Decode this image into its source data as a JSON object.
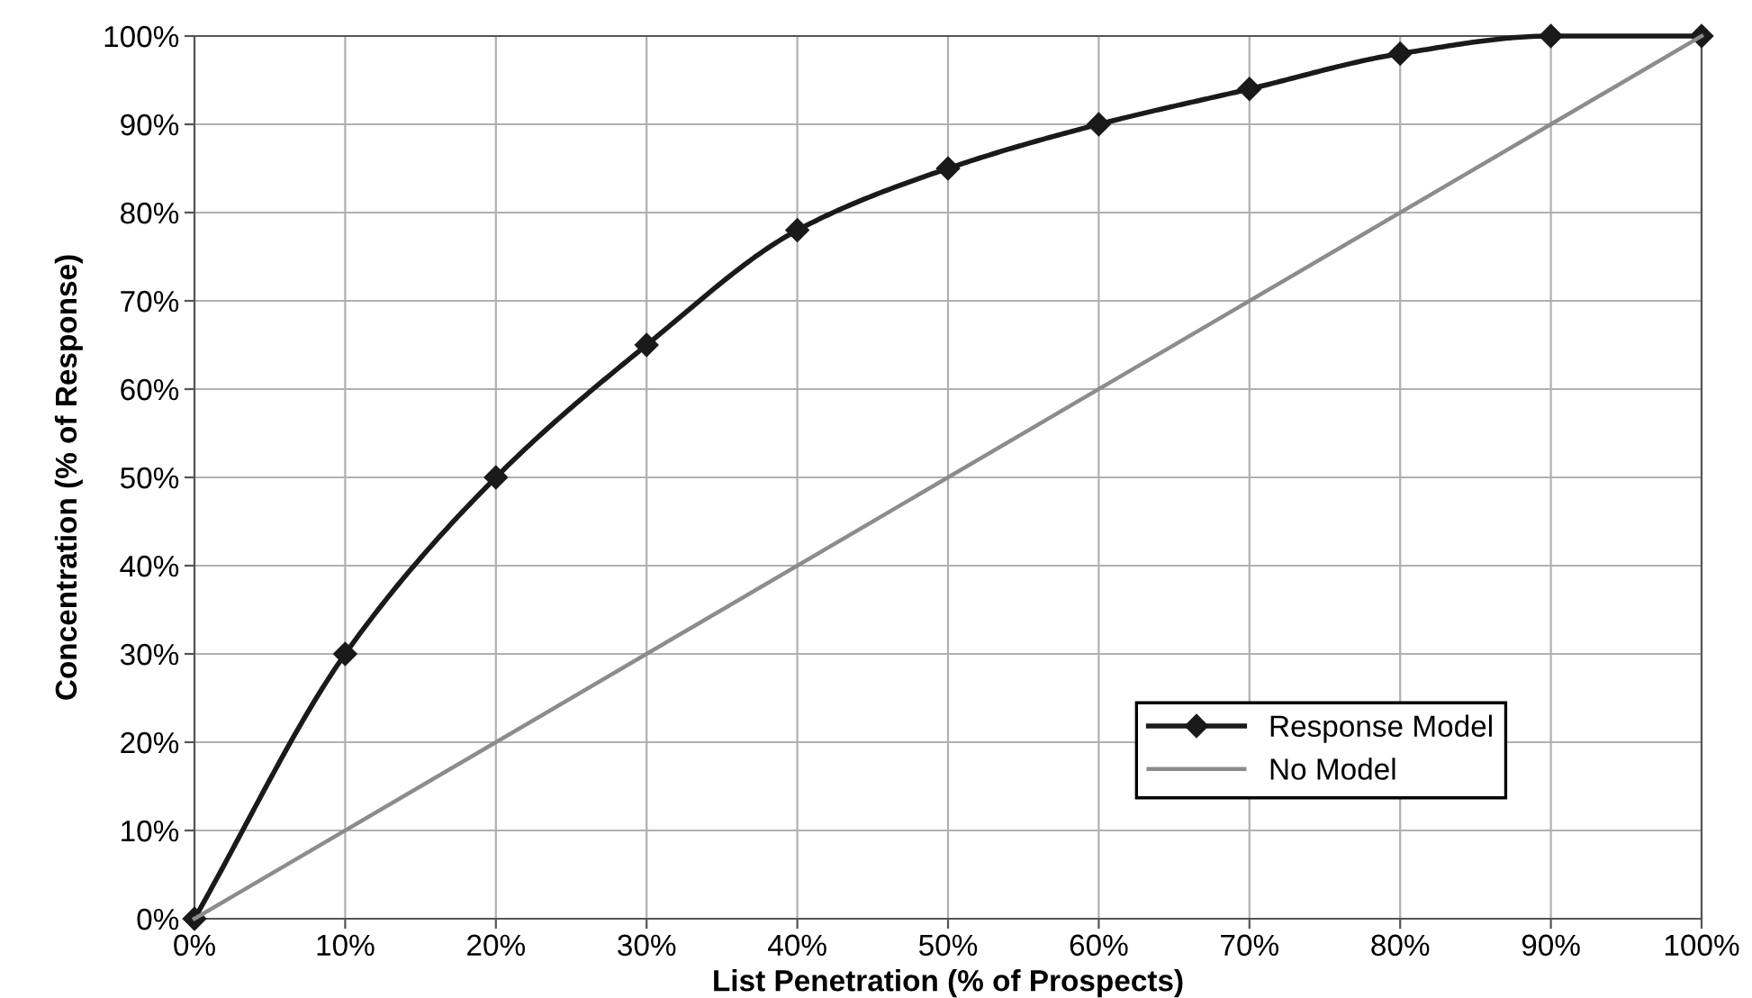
{
  "chart_data": {
    "type": "line",
    "xlabel": "List Penetration (% of Prospects)",
    "ylabel": "Concentration (% of Response)",
    "x": [
      0,
      10,
      20,
      30,
      40,
      50,
      60,
      70,
      80,
      90,
      100
    ],
    "series": [
      {
        "name": "Response Model",
        "color": "#1a1a1a",
        "marker": "diamond",
        "values": [
          0,
          30,
          50,
          65,
          78,
          85,
          90,
          94,
          98,
          100,
          100
        ]
      },
      {
        "name": "No Model",
        "color": "#8c8c8c",
        "marker": "none",
        "x": [
          0,
          100
        ],
        "values": [
          0,
          100
        ]
      }
    ],
    "xlim": [
      0,
      100
    ],
    "ylim": [
      0,
      100
    ],
    "xticks": [
      {
        "value": 0,
        "label": "0%"
      },
      {
        "value": 10,
        "label": "10%"
      },
      {
        "value": 20,
        "label": "20%"
      },
      {
        "value": 30,
        "label": "30%"
      },
      {
        "value": 40,
        "label": "40%"
      },
      {
        "value": 50,
        "label": "50%"
      },
      {
        "value": 60,
        "label": "60%"
      },
      {
        "value": 70,
        "label": "70%"
      },
      {
        "value": 80,
        "label": "80%"
      },
      {
        "value": 90,
        "label": "90%"
      },
      {
        "value": 100,
        "label": "100%"
      }
    ],
    "yticks": [
      {
        "value": 0,
        "label": "0%"
      },
      {
        "value": 10,
        "label": "10%"
      },
      {
        "value": 20,
        "label": "20%"
      },
      {
        "value": 30,
        "label": "30%"
      },
      {
        "value": 40,
        "label": "40%"
      },
      {
        "value": 50,
        "label": "50%"
      },
      {
        "value": 60,
        "label": "60%"
      },
      {
        "value": 70,
        "label": "70%"
      },
      {
        "value": 80,
        "label": "80%"
      },
      {
        "value": 90,
        "label": "90%"
      },
      {
        "value": 100,
        "label": "100%"
      }
    ],
    "grid": true,
    "legend": "bottom right",
    "line_style": "solid"
  }
}
